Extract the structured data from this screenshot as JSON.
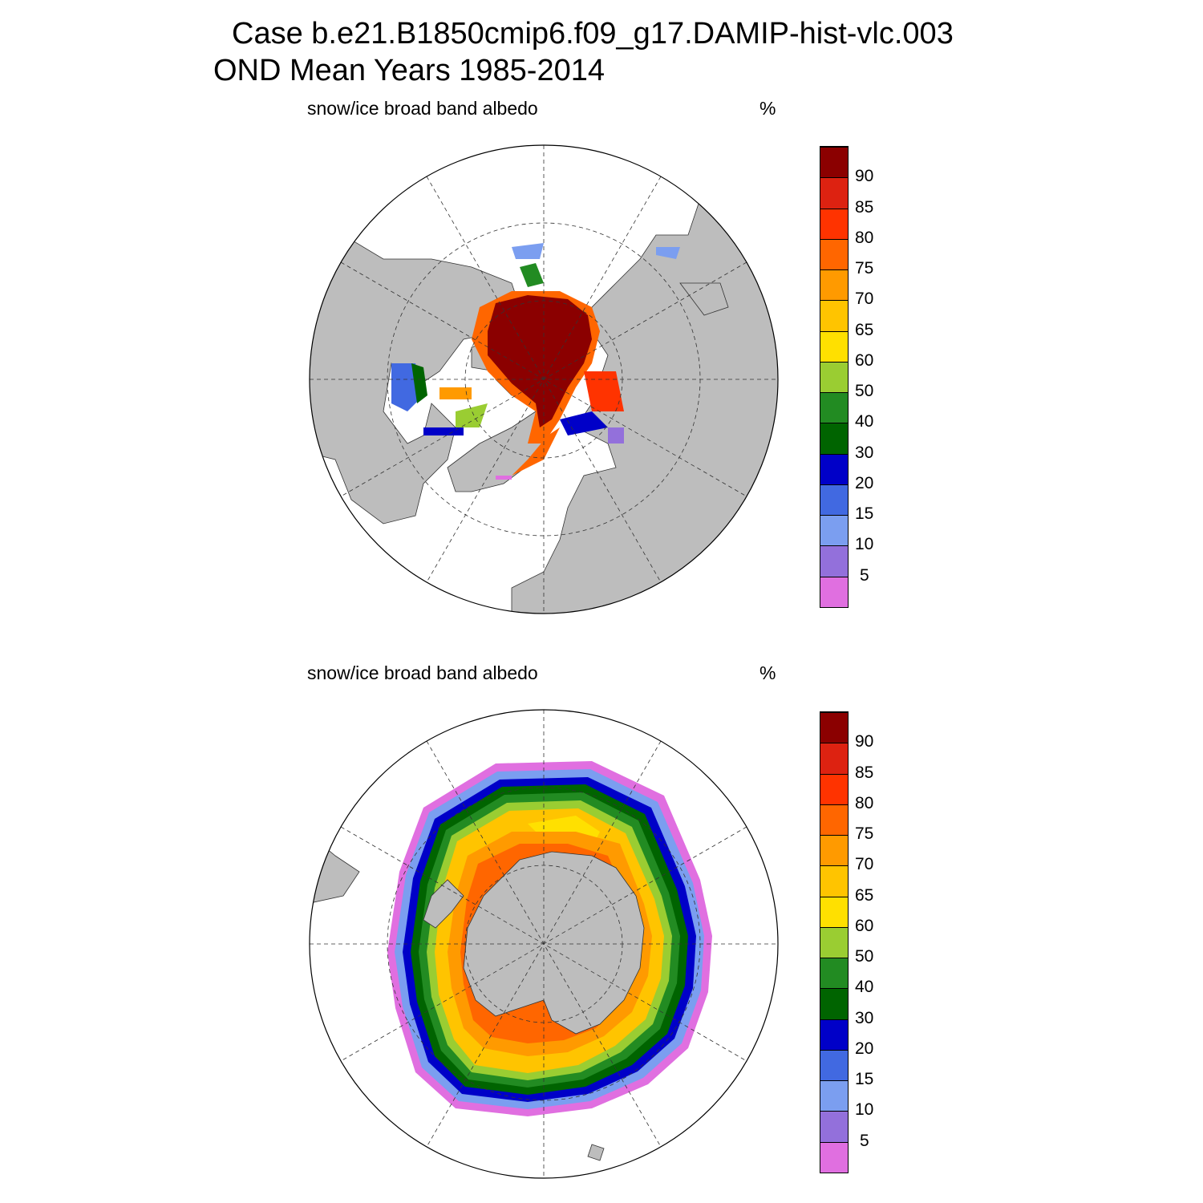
{
  "title": {
    "line1": "Case b.e21.B1850cmip6.f09_g17.DAMIP-hist-vlc.003",
    "line2": "OND Mean   Years 1985-2014"
  },
  "panels": [
    {
      "hemisphere": "north",
      "variable": "snow/ice broad band albedo",
      "units": "%"
    },
    {
      "hemisphere": "south",
      "variable": "snow/ice broad band albedo",
      "units": "%"
    }
  ],
  "colors": {
    "land": "#bdbdbd",
    "ocean": "#ffffff",
    "levels": [
      "#e06fe0",
      "#9370db",
      "#7b9ef0",
      "#4169e1",
      "#0000c8",
      "#006400",
      "#228b22",
      "#9acd32",
      "#ffe000",
      "#ffc400",
      "#ff9a00",
      "#ff6600",
      "#ff3300",
      "#dd2211",
      "#8b0000"
    ]
  },
  "colorbar_labels": [
    "5",
    "10",
    "15",
    "20",
    "30",
    "40",
    "50",
    "60",
    "65",
    "70",
    "75",
    "80",
    "85",
    "90"
  ]
}
